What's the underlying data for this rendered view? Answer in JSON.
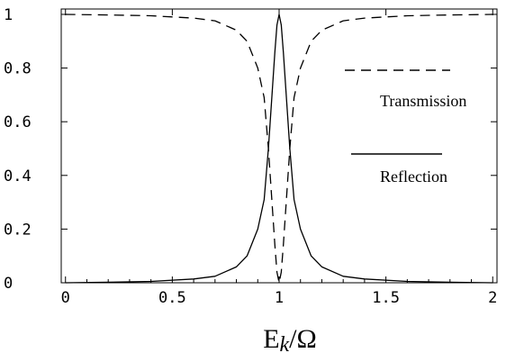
{
  "chart_data": {
    "type": "line",
    "title": "",
    "xlabel": "E",
    "xlabel_sub": "k",
    "xlabel_tail": "/Ω",
    "ylabel": "",
    "xlim": [
      -0.02,
      2.02
    ],
    "ylim": [
      0,
      1.02
    ],
    "x_ticks": [
      "0",
      "0.5",
      "1",
      "1.5",
      "2"
    ],
    "x_tick_values": [
      0,
      0.5,
      1,
      1.5,
      2
    ],
    "y_ticks": [
      "0",
      "0.2",
      "0.4",
      "0.6",
      "0.8",
      "1"
    ],
    "y_tick_values": [
      0,
      0.2,
      0.4,
      0.6,
      0.8,
      1
    ],
    "grid": false,
    "legend_placement": "right",
    "series": [
      {
        "name": "Transmission",
        "style": "dashed",
        "x": [
          0,
          0.2,
          0.4,
          0.6,
          0.7,
          0.8,
          0.85,
          0.9,
          0.93,
          0.95,
          0.97,
          0.98,
          0.99,
          1.0,
          1.01,
          1.02,
          1.03,
          1.05,
          1.07,
          1.1,
          1.15,
          1.2,
          1.3,
          1.4,
          1.6,
          1.8,
          2.0
        ],
        "y": [
          1.0,
          0.998,
          0.995,
          0.986,
          0.976,
          0.941,
          0.9,
          0.8,
          0.69,
          0.5,
          0.26,
          0.14,
          0.04,
          0.0,
          0.04,
          0.14,
          0.26,
          0.5,
          0.69,
          0.8,
          0.9,
          0.941,
          0.976,
          0.986,
          0.995,
          0.998,
          1.0
        ]
      },
      {
        "name": "Reflection",
        "style": "solid",
        "x": [
          0,
          0.2,
          0.4,
          0.6,
          0.7,
          0.8,
          0.85,
          0.9,
          0.93,
          0.95,
          0.97,
          0.98,
          0.99,
          1.0,
          1.01,
          1.02,
          1.03,
          1.05,
          1.07,
          1.1,
          1.15,
          1.2,
          1.3,
          1.4,
          1.6,
          1.8,
          2.0
        ],
        "y": [
          0.0,
          0.002,
          0.005,
          0.014,
          0.024,
          0.059,
          0.1,
          0.2,
          0.31,
          0.5,
          0.74,
          0.86,
          0.96,
          1.0,
          0.96,
          0.86,
          0.74,
          0.5,
          0.31,
          0.2,
          0.1,
          0.059,
          0.024,
          0.014,
          0.005,
          0.002,
          0.0
        ]
      }
    ]
  }
}
